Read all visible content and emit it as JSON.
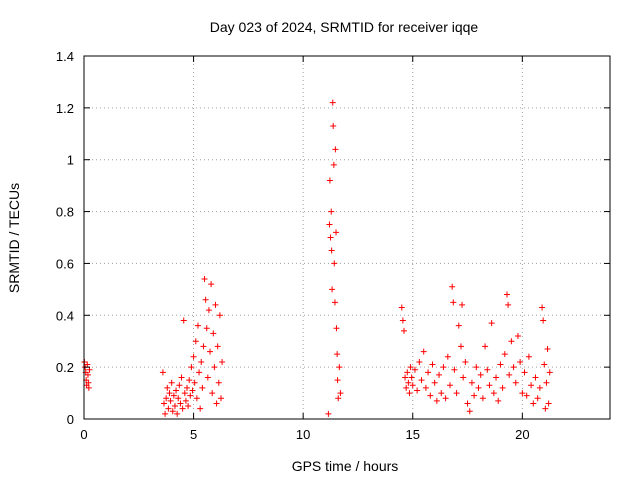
{
  "chart_data": {
    "type": "scatter",
    "title": "Day 023 of 2024, SRMTID for receiver iqqe",
    "xlabel": "GPS time / hours",
    "ylabel": "SRMTID / TECUs",
    "xlim": [
      0,
      24
    ],
    "ylim": [
      0,
      1.4
    ],
    "xticks": [
      0,
      5,
      10,
      15,
      20
    ],
    "yticks": [
      0,
      0.2,
      0.4,
      0.6,
      0.8,
      1,
      1.2,
      1.4
    ],
    "ytick_labels": [
      "0",
      "0.2",
      "0.4",
      "0.6",
      "0.8",
      "1",
      "1.2",
      "1.4"
    ],
    "grid": true,
    "marker": "+",
    "color": "#ff0000",
    "series": [
      {
        "name": "SRMTID",
        "points": [
          [
            0.02,
            0.22
          ],
          [
            0.05,
            0.2
          ],
          [
            0.08,
            0.18
          ],
          [
            0.1,
            0.15
          ],
          [
            0.12,
            0.13
          ],
          [
            0.15,
            0.21
          ],
          [
            0.18,
            0.17
          ],
          [
            0.2,
            0.14
          ],
          [
            0.22,
            0.12
          ],
          [
            0.25,
            0.19
          ],
          [
            3.6,
            0.18
          ],
          [
            3.65,
            0.06
          ],
          [
            3.7,
            0.02
          ],
          [
            3.75,
            0.08
          ],
          [
            3.8,
            0.12
          ],
          [
            3.85,
            0.04
          ],
          [
            3.9,
            0.1
          ],
          [
            3.95,
            0.07
          ],
          [
            4.0,
            0.14
          ],
          [
            4.05,
            0.03
          ],
          [
            4.1,
            0.09
          ],
          [
            4.15,
            0.05
          ],
          [
            4.2,
            0.11
          ],
          [
            4.25,
            0.02
          ],
          [
            4.3,
            0.08
          ],
          [
            4.35,
            0.13
          ],
          [
            4.4,
            0.06
          ],
          [
            4.45,
            0.16
          ],
          [
            4.5,
            0.04
          ],
          [
            4.55,
            0.38
          ],
          [
            4.6,
            0.1
          ],
          [
            4.65,
            0.07
          ],
          [
            4.7,
            0.12
          ],
          [
            4.75,
            0.05
          ],
          [
            4.8,
            0.15
          ],
          [
            4.85,
            0.09
          ],
          [
            4.9,
            0.2
          ],
          [
            4.95,
            0.11
          ],
          [
            5.0,
            0.24
          ],
          [
            5.05,
            0.14
          ],
          [
            5.1,
            0.3
          ],
          [
            5.15,
            0.08
          ],
          [
            5.2,
            0.36
          ],
          [
            5.25,
            0.18
          ],
          [
            5.3,
            0.04
          ],
          [
            5.35,
            0.22
          ],
          [
            5.4,
            0.12
          ],
          [
            5.45,
            0.28
          ],
          [
            5.5,
            0.54
          ],
          [
            5.55,
            0.46
          ],
          [
            5.6,
            0.35
          ],
          [
            5.65,
            0.16
          ],
          [
            5.7,
            0.42
          ],
          [
            5.75,
            0.26
          ],
          [
            5.8,
            0.52
          ],
          [
            5.85,
            0.1
          ],
          [
            5.9,
            0.33
          ],
          [
            5.95,
            0.2
          ],
          [
            6.0,
            0.44
          ],
          [
            6.05,
            0.06
          ],
          [
            6.1,
            0.28
          ],
          [
            6.15,
            0.14
          ],
          [
            6.2,
            0.4
          ],
          [
            6.25,
            0.08
          ],
          [
            6.3,
            0.22
          ],
          [
            11.15,
            0.02
          ],
          [
            11.2,
            0.75
          ],
          [
            11.22,
            0.92
          ],
          [
            11.25,
            0.7
          ],
          [
            11.28,
            0.8
          ],
          [
            11.3,
            0.65
          ],
          [
            11.32,
            0.5
          ],
          [
            11.35,
            1.22
          ],
          [
            11.37,
            1.13
          ],
          [
            11.4,
            0.98
          ],
          [
            11.42,
            0.6
          ],
          [
            11.45,
            0.45
          ],
          [
            11.47,
            1.04
          ],
          [
            11.5,
            0.72
          ],
          [
            11.52,
            0.35
          ],
          [
            11.55,
            0.25
          ],
          [
            11.57,
            0.15
          ],
          [
            11.6,
            0.08
          ],
          [
            11.65,
            0.2
          ],
          [
            11.7,
            0.1
          ],
          [
            14.5,
            0.43
          ],
          [
            14.55,
            0.38
          ],
          [
            14.6,
            0.34
          ],
          [
            14.65,
            0.16
          ],
          [
            14.7,
            0.12
          ],
          [
            14.75,
            0.18
          ],
          [
            14.8,
            0.14
          ],
          [
            14.85,
            0.1
          ],
          [
            14.9,
            0.2
          ],
          [
            14.95,
            0.16
          ],
          [
            15.0,
            0.13
          ],
          [
            15.1,
            0.19
          ],
          [
            15.2,
            0.11
          ],
          [
            15.3,
            0.22
          ],
          [
            15.4,
            0.15
          ],
          [
            15.5,
            0.26
          ],
          [
            15.6,
            0.12
          ],
          [
            15.7,
            0.18
          ],
          [
            15.8,
            0.09
          ],
          [
            15.9,
            0.21
          ],
          [
            16.0,
            0.14
          ],
          [
            16.1,
            0.07
          ],
          [
            16.2,
            0.17
          ],
          [
            16.3,
            0.1
          ],
          [
            16.4,
            0.2
          ],
          [
            16.5,
            0.08
          ],
          [
            16.6,
            0.24
          ],
          [
            16.7,
            0.13
          ],
          [
            16.8,
            0.51
          ],
          [
            16.85,
            0.45
          ],
          [
            16.9,
            0.19
          ],
          [
            17.0,
            0.1
          ],
          [
            17.1,
            0.36
          ],
          [
            17.2,
            0.28
          ],
          [
            17.25,
            0.44
          ],
          [
            17.3,
            0.16
          ],
          [
            17.4,
            0.22
          ],
          [
            17.5,
            0.06
          ],
          [
            17.6,
            0.03
          ],
          [
            17.7,
            0.14
          ],
          [
            17.8,
            0.09
          ],
          [
            17.9,
            0.2
          ],
          [
            18.0,
            0.12
          ],
          [
            18.1,
            0.17
          ],
          [
            18.2,
            0.08
          ],
          [
            18.3,
            0.28
          ],
          [
            18.4,
            0.19
          ],
          [
            18.5,
            0.13
          ],
          [
            18.6,
            0.37
          ],
          [
            18.7,
            0.1
          ],
          [
            18.8,
            0.16
          ],
          [
            18.9,
            0.07
          ],
          [
            19.0,
            0.21
          ],
          [
            19.1,
            0.12
          ],
          [
            19.2,
            0.25
          ],
          [
            19.3,
            0.48
          ],
          [
            19.35,
            0.44
          ],
          [
            19.4,
            0.17
          ],
          [
            19.5,
            0.3
          ],
          [
            19.6,
            0.2
          ],
          [
            19.7,
            0.14
          ],
          [
            19.8,
            0.32
          ],
          [
            19.9,
            0.22
          ],
          [
            20.0,
            0.1
          ],
          [
            20.1,
            0.18
          ],
          [
            20.2,
            0.09
          ],
          [
            20.3,
            0.24
          ],
          [
            20.4,
            0.13
          ],
          [
            20.5,
            0.06
          ],
          [
            20.6,
            0.16
          ],
          [
            20.7,
            0.08
          ],
          [
            20.8,
            0.12
          ],
          [
            20.9,
            0.43
          ],
          [
            20.95,
            0.38
          ],
          [
            21.0,
            0.21
          ],
          [
            21.05,
            0.04
          ],
          [
            21.1,
            0.14
          ],
          [
            21.15,
            0.27
          ],
          [
            21.2,
            0.06
          ],
          [
            21.25,
            0.18
          ]
        ]
      }
    ]
  }
}
